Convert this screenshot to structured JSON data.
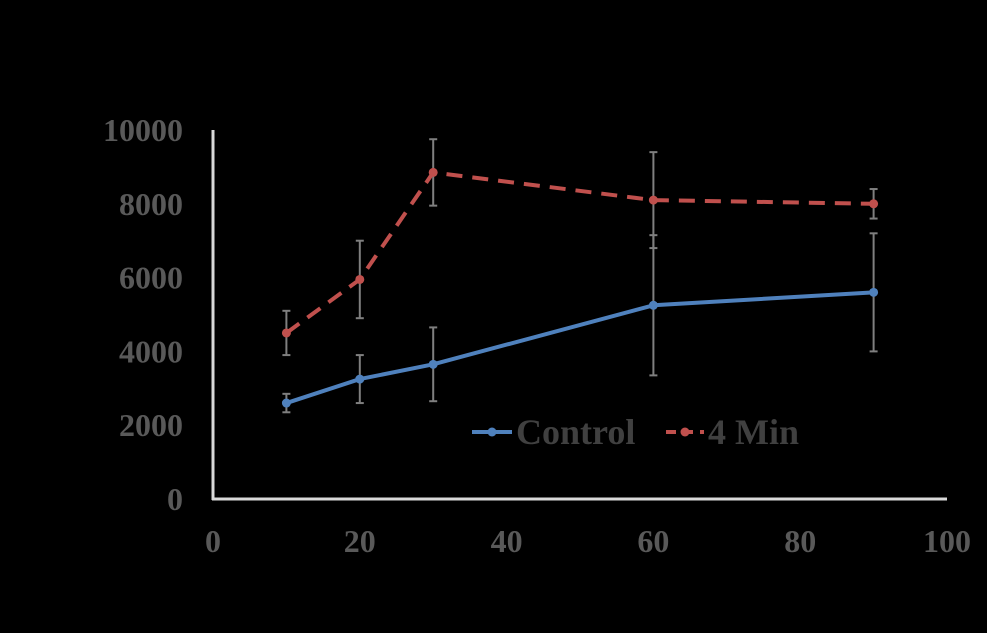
{
  "chart_data": {
    "type": "line",
    "title": "",
    "xlabel": "",
    "ylabel": "",
    "xlim": [
      0,
      100
    ],
    "ylim": [
      0,
      10000
    ],
    "x_ticks": [
      0,
      20,
      40,
      60,
      80,
      100
    ],
    "y_ticks": [
      0,
      2000,
      4000,
      6000,
      8000,
      10000
    ],
    "x_tick_labels": [
      "0",
      "20",
      "40",
      "60",
      "80",
      "100"
    ],
    "y_tick_labels": [
      "0",
      "2000",
      "4000",
      "6000",
      "8000",
      "10000"
    ],
    "grid": false,
    "legend_position": "bottom-center",
    "series": [
      {
        "name": "Control",
        "color": "#4F81BD",
        "line_style": "solid",
        "x": [
          10,
          20,
          30,
          60,
          90
        ],
        "y": [
          2600,
          3250,
          3650,
          5250,
          5600
        ],
        "err": [
          250,
          650,
          1000,
          1900,
          1600
        ]
      },
      {
        "name": "4 Min",
        "color": "#C0504D",
        "line_style": "dashed",
        "x": [
          10,
          20,
          30,
          60,
          90
        ],
        "y": [
          4500,
          5950,
          8850,
          8100,
          8000
        ],
        "err": [
          600,
          1050,
          900,
          1300,
          400
        ]
      }
    ],
    "axis_color": "#D9D9D9",
    "error_bar_color": "#7F7F7F"
  }
}
